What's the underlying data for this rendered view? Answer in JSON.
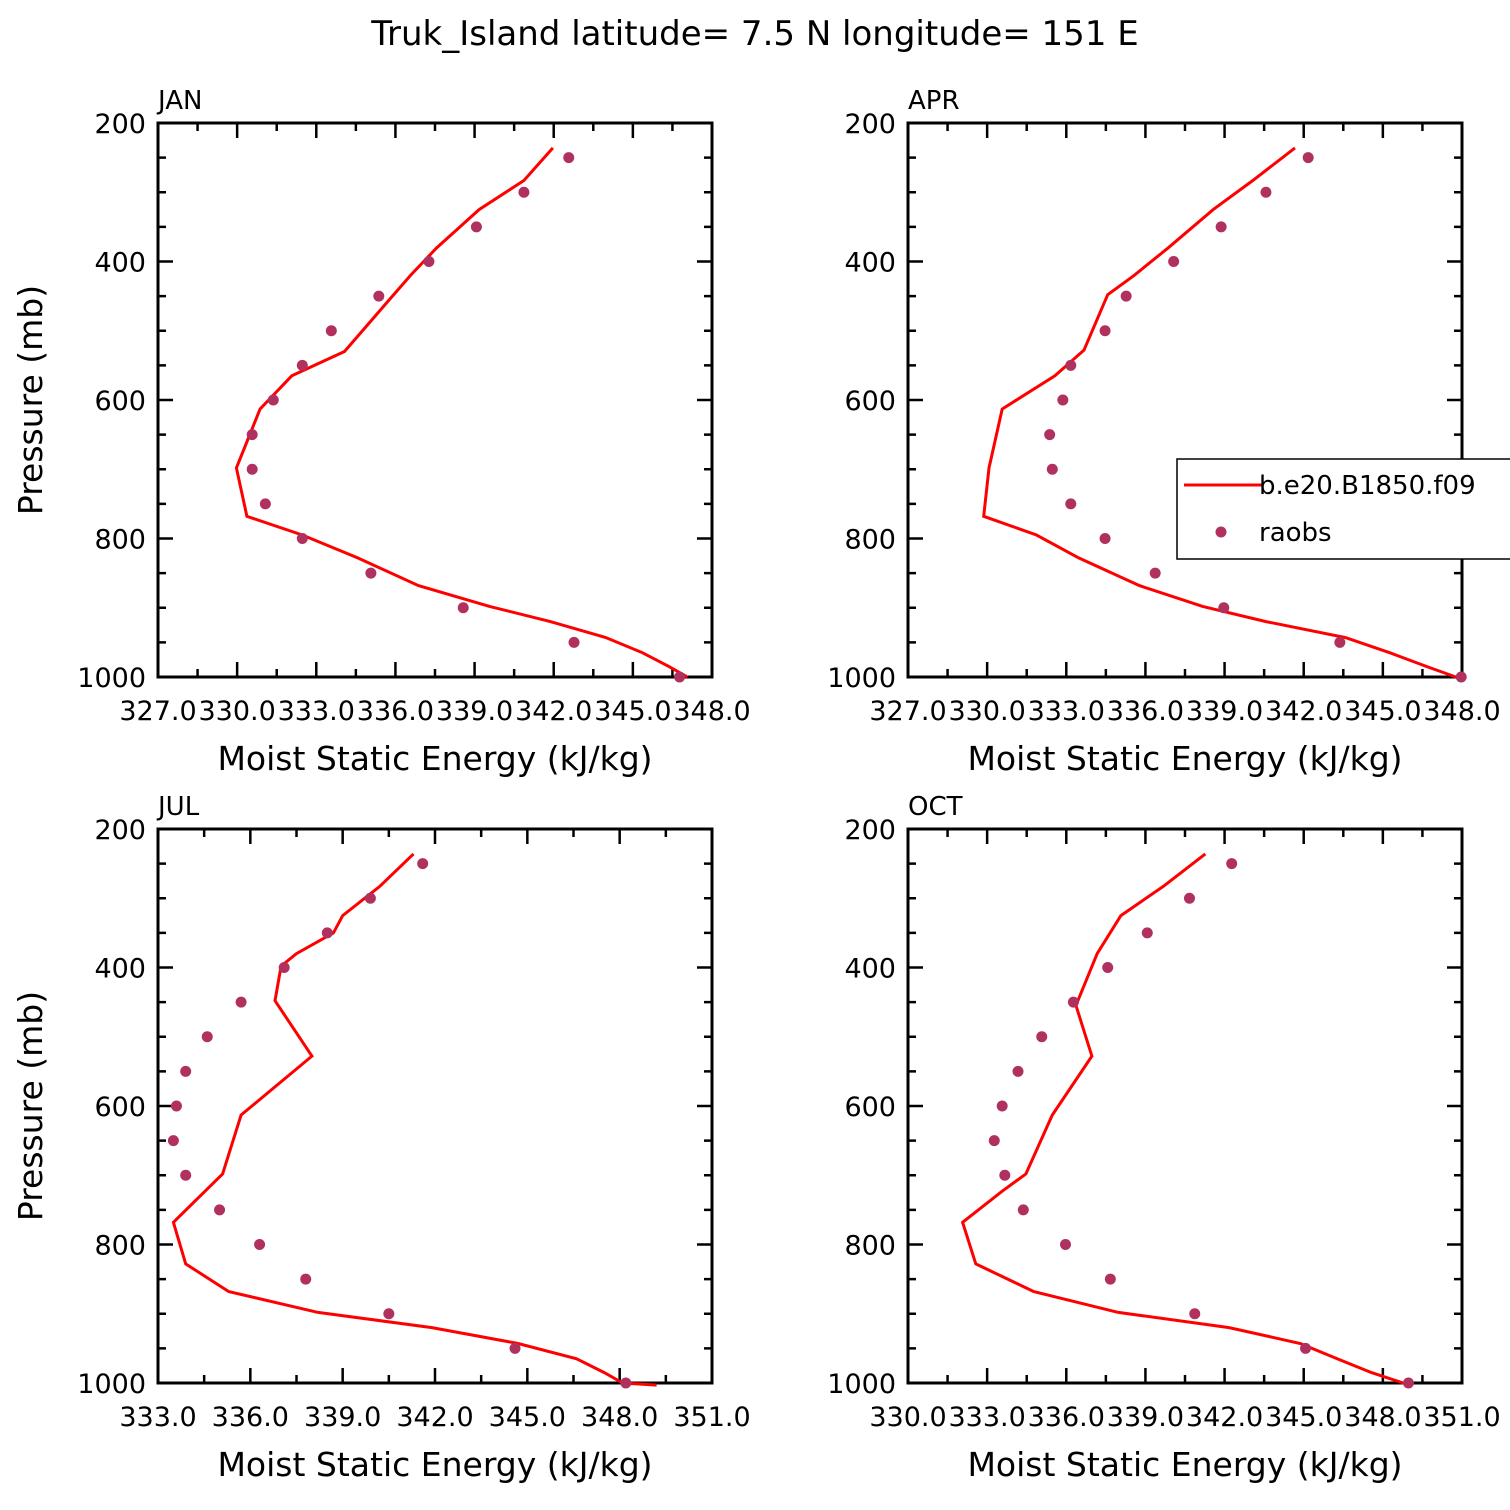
{
  "figure": {
    "title": "Truk_Island  latitude= 7.5 N longitude= 151 E",
    "colors": {
      "model_line": "#ff0000",
      "obs_marker": "#b03060",
      "axis": "#000000"
    }
  },
  "chart_data": [
    {
      "type": "line",
      "panel_label": "JAN",
      "xlabel": "Moist Static Energy (kJ/kg)",
      "ylabel": "Pressure (mb)",
      "xlim": [
        327.03,
        348.03
      ],
      "ylim": [
        1000,
        200
      ],
      "x_tick_labels": [
        "327.0",
        "330.0",
        "333.0",
        "336.0",
        "339.0",
        "342.0",
        "345.0",
        "348.0"
      ],
      "y_tick_labels": [
        "200",
        "400",
        "600",
        "800",
        "1000"
      ],
      "series": [
        {
          "name": "b.e20.B1850.f09",
          "kind": "line",
          "x": [
            342.0,
            340.9,
            339.2,
            337.6,
            336.6,
            335.8,
            334.1,
            332.1,
            330.9,
            330.0,
            330.4,
            332.5,
            334.6,
            336.9,
            339.6,
            341.9,
            344.0,
            345.4,
            346.4,
            347.1
          ],
          "y": [
            236,
            283,
            325,
            380,
            420,
            455,
            530,
            565,
            613,
            698,
            768,
            795,
            828,
            868,
            898,
            920,
            943,
            965,
            985,
            1000
          ]
        },
        {
          "name": "raobs",
          "kind": "scatter",
          "x": [
            342.6,
            340.9,
            339.1,
            337.3,
            335.4,
            333.6,
            332.5,
            331.4,
            330.6,
            330.6,
            331.1,
            332.5,
            335.1,
            338.6,
            342.8,
            346.8
          ],
          "y": [
            250,
            300,
            350,
            400,
            450,
            500,
            550,
            600,
            650,
            700,
            750,
            800,
            850,
            900,
            950,
            1000
          ]
        }
      ]
    },
    {
      "type": "line",
      "panel_label": "APR",
      "xlabel": "Moist Static Energy (kJ/kg)",
      "ylabel": "",
      "xlim": [
        327.03,
        348.03
      ],
      "ylim": [
        1000,
        200
      ],
      "x_tick_labels": [
        "327.0",
        "330.0",
        "333.0",
        "336.0",
        "339.0",
        "342.0",
        "345.0",
        "348.0"
      ],
      "y_tick_labels": [
        "200",
        "400",
        "600",
        "800",
        "1000"
      ],
      "legend": {
        "location": "right",
        "entries": [
          "b.e20.B1850.f09",
          "raobs"
        ]
      },
      "series": [
        {
          "name": "b.e20.B1850.f09",
          "kind": "line",
          "x": [
            341.7,
            340.1,
            338.6,
            336.9,
            335.6,
            334.6,
            333.7,
            332.6,
            330.6,
            330.1,
            329.9,
            331.9,
            333.5,
            335.8,
            338.2,
            340.6,
            343.6,
            345.3,
            346.7,
            347.8
          ],
          "y": [
            236,
            283,
            325,
            380,
            420,
            448,
            528,
            565,
            613,
            698,
            768,
            795,
            828,
            868,
            898,
            920,
            943,
            965,
            985,
            1000
          ]
        },
        {
          "name": "raobs",
          "kind": "scatter",
          "x": [
            342.2,
            340.6,
            338.9,
            337.1,
            335.3,
            334.5,
            333.2,
            332.9,
            332.4,
            332.5,
            333.2,
            334.5,
            336.4,
            339.0,
            343.4,
            348.0
          ],
          "y": [
            250,
            300,
            350,
            400,
            450,
            500,
            550,
            600,
            650,
            700,
            750,
            800,
            850,
            900,
            950,
            1000
          ]
        }
      ]
    },
    {
      "type": "line",
      "panel_label": "JUL",
      "xlabel": "Moist Static Energy (kJ/kg)",
      "ylabel": "Pressure (mb)",
      "xlim": [
        333.0,
        351.0
      ],
      "ylim": [
        1000,
        200
      ],
      "x_tick_labels": [
        "333.0",
        "336.0",
        "339.0",
        "342.0",
        "345.0",
        "348.0",
        "351.0"
      ],
      "y_tick_labels": [
        "200",
        "400",
        "600",
        "800",
        "1000"
      ],
      "series": [
        {
          "name": "b.e20.B1850.f09",
          "kind": "line",
          "x": [
            341.3,
            340.2,
            339.0,
            338.7,
            337.5,
            337.0,
            336.8,
            338.0,
            335.7,
            335.1,
            333.5,
            333.9,
            335.3,
            338.2,
            341.9,
            344.7,
            346.6,
            347.5,
            348.1,
            349.2
          ],
          "y": [
            236,
            283,
            325,
            350,
            380,
            398,
            448,
            528,
            613,
            698,
            768,
            828,
            868,
            898,
            920,
            943,
            965,
            985,
            1000,
            1003
          ]
        },
        {
          "name": "raobs",
          "kind": "scatter",
          "x": [
            341.6,
            339.9,
            338.5,
            337.1,
            335.7,
            334.6,
            333.9,
            333.6,
            333.5,
            333.9,
            335.0,
            336.3,
            337.8,
            340.5,
            344.6,
            348.2
          ],
          "y": [
            250,
            300,
            350,
            400,
            450,
            500,
            550,
            600,
            650,
            700,
            750,
            800,
            850,
            900,
            950,
            1000
          ]
        }
      ]
    },
    {
      "type": "line",
      "panel_label": "OCT",
      "xlabel": "Moist Static Energy (kJ/kg)",
      "ylabel": "",
      "xlim": [
        330.03,
        351.03
      ],
      "ylim": [
        1000,
        200
      ],
      "x_tick_labels": [
        "330.0",
        "333.0",
        "336.0",
        "339.0",
        "342.0",
        "345.0",
        "348.0",
        "351.0"
      ],
      "y_tick_labels": [
        "200",
        "400",
        "600",
        "800",
        "1000"
      ],
      "series": [
        {
          "name": "b.e20.B1850.f09",
          "kind": "line",
          "x": [
            341.3,
            339.7,
            338.1,
            337.2,
            336.5,
            336.4,
            337.0,
            335.5,
            334.5,
            333.6,
            332.1,
            332.6,
            334.8,
            338.0,
            342.2,
            344.9,
            346.3,
            347.6,
            348.8,
            349.1
          ],
          "y": [
            236,
            283,
            325,
            380,
            445,
            455,
            528,
            613,
            698,
            723,
            768,
            828,
            868,
            898,
            920,
            943,
            965,
            985,
            1000,
            1000
          ]
        },
        {
          "name": "raobs",
          "kind": "scatter",
          "x": [
            342.3,
            340.7,
            339.1,
            337.6,
            336.3,
            335.1,
            334.2,
            333.6,
            333.3,
            333.7,
            334.4,
            336.0,
            337.7,
            340.9,
            345.1,
            349.0
          ],
          "y": [
            250,
            300,
            350,
            400,
            450,
            500,
            550,
            600,
            650,
            700,
            750,
            800,
            850,
            900,
            950,
            1000
          ]
        }
      ]
    }
  ]
}
